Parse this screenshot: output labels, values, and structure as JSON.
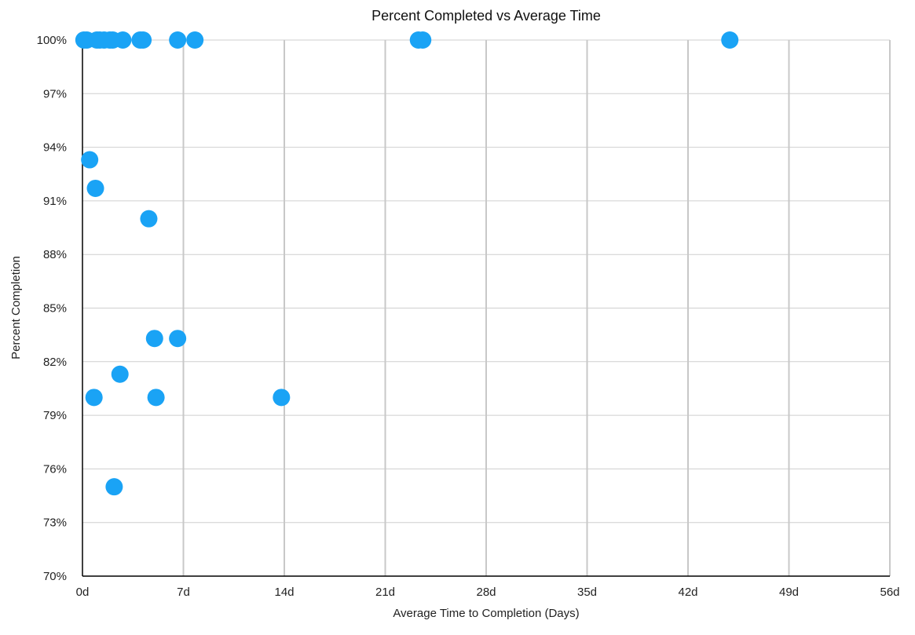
{
  "chart_data": {
    "type": "scatter",
    "title": "Percent Completed vs Average Time",
    "xlabel": "Average Time to Completion (Days)",
    "ylabel": "Percent Completion",
    "xlim": [
      0,
      56
    ],
    "ylim": [
      70,
      100
    ],
    "x_ticks": [
      0,
      7,
      14,
      21,
      28,
      35,
      42,
      49,
      56
    ],
    "x_tick_labels": [
      "0d",
      "7d",
      "14d",
      "21d",
      "28d",
      "35d",
      "42d",
      "49d",
      "56d"
    ],
    "y_ticks": [
      70,
      73,
      76,
      79,
      82,
      85,
      88,
      91,
      94,
      97,
      100
    ],
    "y_tick_labels": [
      "70%",
      "73%",
      "76%",
      "79%",
      "82%",
      "85%",
      "88%",
      "91%",
      "94%",
      "97%",
      "100%"
    ],
    "grid": true,
    "marker_color": "#1aa3f5",
    "points": [
      {
        "x": 0.1,
        "y": 100
      },
      {
        "x": 0.3,
        "y": 100
      },
      {
        "x": 1.0,
        "y": 100
      },
      {
        "x": 1.2,
        "y": 100
      },
      {
        "x": 1.5,
        "y": 100
      },
      {
        "x": 1.9,
        "y": 100
      },
      {
        "x": 2.1,
        "y": 100
      },
      {
        "x": 2.8,
        "y": 100
      },
      {
        "x": 4.0,
        "y": 100
      },
      {
        "x": 4.2,
        "y": 100
      },
      {
        "x": 6.6,
        "y": 100
      },
      {
        "x": 7.8,
        "y": 100
      },
      {
        "x": 23.3,
        "y": 100
      },
      {
        "x": 23.6,
        "y": 100
      },
      {
        "x": 44.9,
        "y": 100
      },
      {
        "x": 0.5,
        "y": 93.3
      },
      {
        "x": 0.9,
        "y": 91.7
      },
      {
        "x": 4.6,
        "y": 90.0
      },
      {
        "x": 5.0,
        "y": 83.3
      },
      {
        "x": 6.6,
        "y": 83.3
      },
      {
        "x": 2.6,
        "y": 81.3
      },
      {
        "x": 0.8,
        "y": 80.0
      },
      {
        "x": 5.1,
        "y": 80.0
      },
      {
        "x": 13.8,
        "y": 80.0
      },
      {
        "x": 2.2,
        "y": 75.0
      }
    ]
  }
}
